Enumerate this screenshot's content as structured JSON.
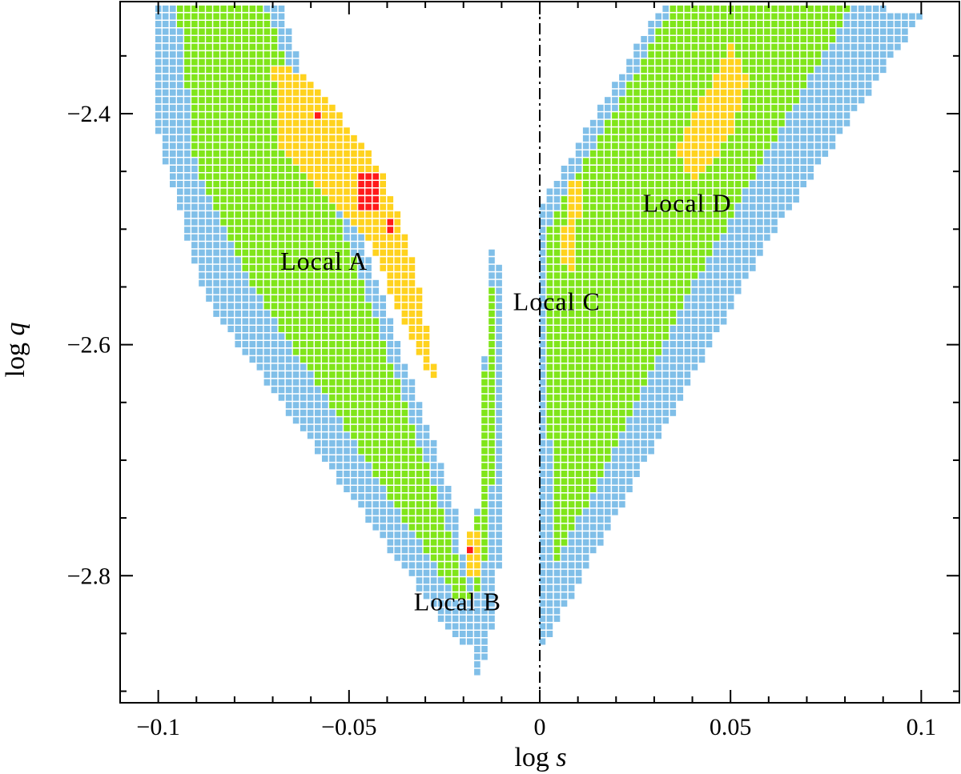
{
  "chart_data": {
    "type": "heatmap",
    "title": "",
    "xlabel": "log s",
    "xlabel_parts": [
      "log ",
      "s"
    ],
    "ylabel": "log q",
    "ylabel_parts": [
      "log ",
      "q"
    ],
    "xlim": [
      -0.11,
      0.11
    ],
    "ylim": [
      -2.91,
      -2.303
    ],
    "x_ticks": [
      -0.1,
      -0.05,
      0,
      0.05,
      0.1
    ],
    "x_tick_labels": [
      "−0.1",
      "−0.05",
      "0",
      "0.05",
      "0.1"
    ],
    "y_ticks": [
      -2.8,
      -2.6,
      -2.4
    ],
    "y_tick_labels": [
      "−2.8",
      "−2.6",
      "−2.4"
    ],
    "grid": false,
    "legend": "none",
    "reference_line": {
      "x": 0,
      "style": "dash-dot"
    },
    "cell_size": {
      "dx": 0.0019,
      "dy": 0.0066
    },
    "levels": [
      {
        "level": 1,
        "color": "#80bfe8"
      },
      {
        "level": 2,
        "color": "#80e51a"
      },
      {
        "level": 3,
        "color": "#ffd21e"
      },
      {
        "level": 4,
        "color": "#ff1a1a"
      }
    ],
    "annotations": [
      {
        "text": "Local A",
        "x": -0.068,
        "y": -2.535
      },
      {
        "text": "Local B",
        "x": -0.033,
        "y": -2.83
      },
      {
        "text": "Local C",
        "x": -0.007,
        "y": -2.57
      },
      {
        "text": "Local D",
        "x": 0.027,
        "y": -2.485
      }
    ],
    "regions": [
      {
        "name": "left-wedge",
        "poly": [
          [
            -0.1,
            -2.306
          ],
          [
            -0.068,
            -2.306
          ],
          [
            -0.022,
            -2.74
          ],
          [
            -0.017,
            -2.86
          ],
          [
            -0.021,
            -2.86
          ],
          [
            -0.088,
            -2.56
          ],
          [
            -0.1,
            -2.42
          ]
        ],
        "level": 1
      },
      {
        "name": "left-wedge-green",
        "poly": [
          [
            -0.095,
            -2.306
          ],
          [
            -0.072,
            -2.306
          ],
          [
            -0.028,
            -2.72
          ],
          [
            -0.018,
            -2.82
          ],
          [
            -0.022,
            -2.82
          ],
          [
            -0.075,
            -2.55
          ],
          [
            -0.09,
            -2.45
          ]
        ],
        "level": 2
      },
      {
        "name": "left-peak",
        "poly": [
          [
            -0.07,
            -2.355
          ],
          [
            -0.06,
            -2.37
          ],
          [
            -0.041,
            -2.45
          ],
          [
            -0.033,
            -2.53
          ],
          [
            -0.027,
            -2.63
          ],
          [
            -0.029,
            -2.63
          ],
          [
            -0.045,
            -2.51
          ],
          [
            -0.068,
            -2.43
          ]
        ],
        "level": 3
      },
      {
        "name": "bottom-peak",
        "poly": [
          [
            -0.02,
            -2.76
          ],
          [
            -0.016,
            -2.76
          ],
          [
            -0.016,
            -2.8
          ],
          [
            -0.02,
            -2.8
          ]
        ],
        "level": 3
      },
      {
        "name": "middle-spike",
        "poly": [
          [
            -0.014,
            -2.515
          ],
          [
            -0.011,
            -2.515
          ],
          [
            -0.009,
            -2.6
          ],
          [
            -0.011,
            -2.83
          ],
          [
            -0.016,
            -2.89
          ],
          [
            -0.02,
            -2.84
          ],
          [
            -0.015,
            -2.7
          ]
        ],
        "level": 1
      },
      {
        "name": "middle-spike-green",
        "poly": [
          [
            -0.014,
            -2.55
          ],
          [
            -0.012,
            -2.55
          ],
          [
            -0.011,
            -2.65
          ],
          [
            -0.014,
            -2.78
          ],
          [
            -0.018,
            -2.84
          ],
          [
            -0.018,
            -2.8
          ],
          [
            -0.015,
            -2.7
          ]
        ],
        "level": 2
      },
      {
        "name": "right-wedge",
        "poly": [
          [
            0.0,
            -2.48
          ],
          [
            0.032,
            -2.306
          ],
          [
            0.086,
            -2.306
          ],
          [
            0.1,
            -2.315
          ],
          [
            0.06,
            -2.51
          ],
          [
            0.003,
            -2.85
          ],
          [
            0.0,
            -2.86
          ]
        ],
        "level": 1
      },
      {
        "name": "right-wedge-green",
        "poly": [
          [
            0.002,
            -2.5
          ],
          [
            0.035,
            -2.306
          ],
          [
            0.082,
            -2.306
          ],
          [
            0.06,
            -2.43
          ],
          [
            0.04,
            -2.55
          ],
          [
            0.003,
            -2.8
          ]
        ],
        "level": 2
      },
      {
        "name": "right-peak",
        "poly": [
          [
            0.036,
            -2.43
          ],
          [
            0.05,
            -2.34
          ],
          [
            0.055,
            -2.37
          ],
          [
            0.05,
            -2.42
          ],
          [
            0.04,
            -2.46
          ]
        ],
        "level": 3
      },
      {
        "name": "right-peak-2",
        "poly": [
          [
            0.005,
            -2.53
          ],
          [
            0.008,
            -2.46
          ],
          [
            0.011,
            -2.46
          ],
          [
            0.009,
            -2.54
          ]
        ],
        "level": 3
      },
      {
        "name": "red-spot-a1",
        "poly": [
          [
            -0.06,
            -2.397
          ],
          [
            -0.058,
            -2.397
          ],
          [
            -0.058,
            -2.405
          ],
          [
            -0.06,
            -2.405
          ]
        ],
        "level": 4
      },
      {
        "name": "red-spot-a2",
        "poly": [
          [
            -0.048,
            -2.45
          ],
          [
            -0.042,
            -2.45
          ],
          [
            -0.042,
            -2.485
          ],
          [
            -0.048,
            -2.485
          ]
        ],
        "level": 4
      },
      {
        "name": "red-spot-a3",
        "poly": [
          [
            -0.041,
            -2.49
          ],
          [
            -0.039,
            -2.49
          ],
          [
            -0.039,
            -2.505
          ],
          [
            -0.041,
            -2.505
          ]
        ],
        "level": 4
      },
      {
        "name": "red-spot-b",
        "poly": [
          [
            -0.019,
            -2.772
          ],
          [
            -0.017,
            -2.772
          ],
          [
            -0.017,
            -2.78
          ],
          [
            -0.019,
            -2.78
          ]
        ],
        "level": 4
      }
    ]
  }
}
